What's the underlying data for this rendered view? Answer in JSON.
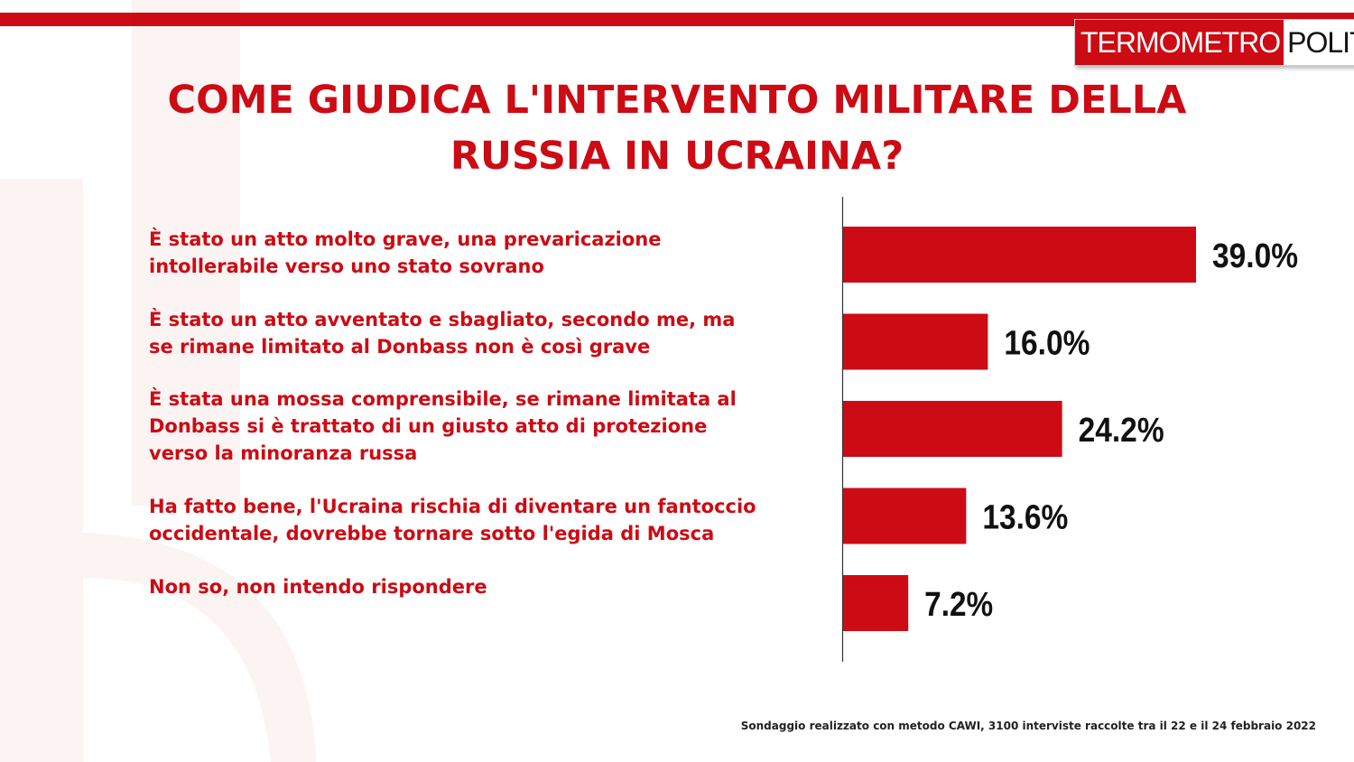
{
  "header": {
    "logo_part1": "TERMOMETRO",
    "logo_part2": "POLITICO",
    "title_line1": "COME GIUDICA L'INTERVENTO MILITARE DELLA",
    "title_line2": "RUSSIA IN UCRAINA?"
  },
  "answers": [
    {
      "line1": "È stato un atto molto grave, una prevaricazione",
      "line2": "intollerabile verso uno stato sovrano",
      "line3": ""
    },
    {
      "line1": "È stato un atto avventato e sbagliato, secondo me, ma",
      "line2": "se rimane limitato al Donbass non è così grave",
      "line3": ""
    },
    {
      "line1": "È stata una mossa comprensibile, se rimane limitata al",
      "line2": "Donbass si è trattato di un giusto atto di protezione",
      "line3": "verso la minoranza russa"
    },
    {
      "line1": "Ha fatto bene, l'Ucraina rischia di diventare un fantoccio",
      "line2": "occidentale, dovrebbe tornare sotto l'egida di Mosca",
      "line3": ""
    },
    {
      "line1": "Non so, non intendo rispondere",
      "line2": "",
      "line3": ""
    }
  ],
  "chart_data": {
    "type": "bar",
    "orientation": "horizontal",
    "title": "COME GIUDICA L'INTERVENTO MILITARE DELLA RUSSIA IN UCRAINA?",
    "categories": [
      "È stato un atto molto grave, una prevaricazione intollerabile verso uno stato sovrano",
      "È stato un atto avventato e sbagliato, secondo me, ma se rimane limitato al Donbass non è così grave",
      "È stata una mossa comprensibile, se rimane limitata al Donbass si è trattato di un giusto atto di protezione verso la minoranza russa",
      "Ha fatto bene, l'Ucraina rischia di diventare un fantoccio occidentale, dovrebbe tornare sotto l'egida di Mosca",
      "Non so, non intendo rispondere"
    ],
    "values": [
      39.0,
      16.0,
      24.2,
      13.6,
      7.2
    ],
    "value_labels": [
      "39.0%",
      "16.0%",
      "24.2%",
      "13.6%",
      "7.2%"
    ],
    "unit": "%",
    "xlim": [
      0,
      39.0
    ],
    "bar_color": "#cc0b14",
    "grid": false
  },
  "footer": {
    "note": "Sondaggio realizzato con metodo CAWI, 3100 interviste raccolte tra il 22 e il 24 febbraio 2022"
  }
}
